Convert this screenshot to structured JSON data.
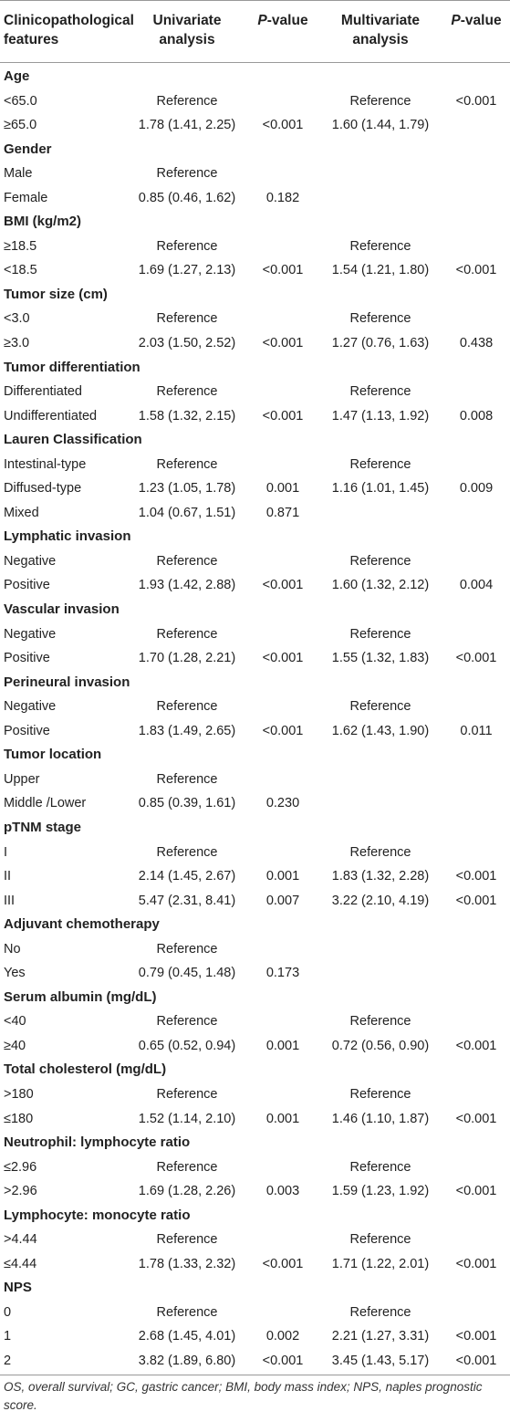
{
  "header": {
    "features_line1": "Clinicopathological",
    "features_line2": "features",
    "univariate_line1": "Univariate",
    "univariate_line2": "analysis",
    "p_value_1_italic": "P",
    "p_value_1_rest": "-value",
    "multivariate_line1": "Multivariate",
    "multivariate_line2": "analysis",
    "p_value_2_italic": "P",
    "p_value_2_rest": "-value"
  },
  "rows": [
    {
      "type": "group",
      "feature": "Age",
      "uni": "",
      "p1": "",
      "multi": "",
      "p2": ""
    },
    {
      "type": "data",
      "feature": "<65.0",
      "uni": "Reference",
      "p1": "",
      "multi": "Reference",
      "p2": "<0.001"
    },
    {
      "type": "data",
      "feature": "≥65.0",
      "uni": "1.78 (1.41, 2.25)",
      "p1": "<0.001",
      "multi": "1.60 (1.44, 1.79)",
      "p2": ""
    },
    {
      "type": "group",
      "feature": "Gender",
      "uni": "",
      "p1": "",
      "multi": "",
      "p2": ""
    },
    {
      "type": "data",
      "feature": "Male",
      "uni": "Reference",
      "p1": "",
      "multi": "",
      "p2": ""
    },
    {
      "type": "data",
      "feature": "Female",
      "uni": "0.85 (0.46, 1.62)",
      "p1": "0.182",
      "multi": "",
      "p2": ""
    },
    {
      "type": "group",
      "feature": "BMI (kg/m2)",
      "uni": "",
      "p1": "",
      "multi": "",
      "p2": ""
    },
    {
      "type": "data",
      "feature": "≥18.5",
      "uni": "Reference",
      "p1": "",
      "multi": "Reference",
      "p2": ""
    },
    {
      "type": "data",
      "feature": "<18.5",
      "uni": "1.69 (1.27, 2.13)",
      "p1": "<0.001",
      "multi": "1.54 (1.21, 1.80)",
      "p2": "<0.001"
    },
    {
      "type": "group",
      "feature": "Tumor size (cm)",
      "uni": "",
      "p1": "",
      "multi": "",
      "p2": ""
    },
    {
      "type": "data",
      "feature": "<3.0",
      "uni": "Reference",
      "p1": "",
      "multi": "Reference",
      "p2": ""
    },
    {
      "type": "data",
      "feature": "≥3.0",
      "uni": "2.03 (1.50, 2.52)",
      "p1": "<0.001",
      "multi": "1.27 (0.76, 1.63)",
      "p2": "0.438"
    },
    {
      "type": "group",
      "feature": "Tumor differentiation",
      "uni": "",
      "p1": "",
      "multi": "",
      "p2": ""
    },
    {
      "type": "data",
      "feature": "Differentiated",
      "uni": "Reference",
      "p1": "",
      "multi": "Reference",
      "p2": ""
    },
    {
      "type": "data",
      "feature": "Undifferentiated",
      "uni": "1.58 (1.32, 2.15)",
      "p1": "<0.001",
      "multi": "1.47 (1.13, 1.92)",
      "p2": "0.008"
    },
    {
      "type": "group",
      "feature": "Lauren Classification",
      "uni": "",
      "p1": "",
      "multi": "",
      "p2": ""
    },
    {
      "type": "data",
      "feature": "Intestinal-type",
      "uni": "Reference",
      "p1": "",
      "multi": "Reference",
      "p2": ""
    },
    {
      "type": "data",
      "feature": "Diffused-type",
      "uni": "1.23 (1.05, 1.78)",
      "p1": "0.001",
      "multi": "1.16 (1.01, 1.45)",
      "p2": "0.009"
    },
    {
      "type": "data",
      "feature": "Mixed",
      "uni": "1.04 (0.67, 1.51)",
      "p1": "0.871",
      "multi": "",
      "p2": ""
    },
    {
      "type": "group",
      "feature": "Lymphatic invasion",
      "uni": "",
      "p1": "",
      "multi": "",
      "p2": ""
    },
    {
      "type": "data",
      "feature": "Negative",
      "uni": "Reference",
      "p1": "",
      "multi": "Reference",
      "p2": ""
    },
    {
      "type": "data",
      "feature": "Positive",
      "uni": "1.93 (1.42, 2.88)",
      "p1": "<0.001",
      "multi": "1.60 (1.32, 2.12)",
      "p2": "0.004"
    },
    {
      "type": "group",
      "feature": "Vascular invasion",
      "uni": "",
      "p1": "",
      "multi": "",
      "p2": ""
    },
    {
      "type": "data",
      "feature": "Negative",
      "uni": "Reference",
      "p1": "",
      "multi": "Reference",
      "p2": ""
    },
    {
      "type": "data",
      "feature": "Positive",
      "uni": "1.70 (1.28, 2.21)",
      "p1": "<0.001",
      "multi": "1.55 (1.32, 1.83)",
      "p2": "<0.001"
    },
    {
      "type": "group",
      "feature": "Perineural invasion",
      "uni": "",
      "p1": "",
      "multi": "",
      "p2": ""
    },
    {
      "type": "data",
      "feature": "Negative",
      "uni": "Reference",
      "p1": "",
      "multi": "Reference",
      "p2": ""
    },
    {
      "type": "data",
      "feature": "Positive",
      "uni": "1.83 (1.49, 2.65)",
      "p1": "<0.001",
      "multi": "1.62 (1.43, 1.90)",
      "p2": "0.011"
    },
    {
      "type": "group",
      "feature": "Tumor location",
      "uni": "",
      "p1": "",
      "multi": "",
      "p2": ""
    },
    {
      "type": "data",
      "feature": "Upper",
      "uni": "Reference",
      "p1": "",
      "multi": "",
      "p2": ""
    },
    {
      "type": "data",
      "feature": "Middle /Lower",
      "uni": "0.85 (0.39, 1.61)",
      "p1": "0.230",
      "multi": "",
      "p2": ""
    },
    {
      "type": "group",
      "feature": "pTNM stage",
      "uni": "",
      "p1": "",
      "multi": "",
      "p2": ""
    },
    {
      "type": "data",
      "feature": "I",
      "uni": "Reference",
      "p1": "",
      "multi": "Reference",
      "p2": ""
    },
    {
      "type": "data",
      "feature": "II",
      "uni": "2.14 (1.45, 2.67)",
      "p1": "0.001",
      "multi": "1.83 (1.32, 2.28)",
      "p2": "<0.001"
    },
    {
      "type": "data",
      "feature": "III",
      "uni": "5.47 (2.31, 8.41)",
      "p1": "0.007",
      "multi": "3.22 (2.10, 4.19)",
      "p2": "<0.001"
    },
    {
      "type": "group",
      "feature": "Adjuvant chemotherapy",
      "uni": "",
      "p1": "",
      "multi": "",
      "p2": ""
    },
    {
      "type": "data",
      "feature": "No",
      "uni": "Reference",
      "p1": "",
      "multi": "",
      "p2": ""
    },
    {
      "type": "data",
      "feature": "Yes",
      "uni": "0.79 (0.45, 1.48)",
      "p1": "0.173",
      "multi": "",
      "p2": ""
    },
    {
      "type": "group",
      "feature": "Serum albumin (mg/dL)",
      "uni": "",
      "p1": "",
      "multi": "",
      "p2": ""
    },
    {
      "type": "data",
      "feature": "<40",
      "uni": "Reference",
      "p1": "",
      "multi": "Reference",
      "p2": ""
    },
    {
      "type": "data",
      "feature": "≥40",
      "uni": "0.65 (0.52, 0.94)",
      "p1": "0.001",
      "multi": "0.72 (0.56, 0.90)",
      "p2": "<0.001"
    },
    {
      "type": "group",
      "feature": "Total cholesterol (mg/dL)",
      "uni": "",
      "p1": "",
      "multi": "",
      "p2": ""
    },
    {
      "type": "data",
      "feature": ">180",
      "uni": "Reference",
      "p1": "",
      "multi": "Reference",
      "p2": ""
    },
    {
      "type": "data",
      "feature": "≤180",
      "uni": "1.52 (1.14, 2.10)",
      "p1": "0.001",
      "multi": "1.46 (1.10, 1.87)",
      "p2": "<0.001"
    },
    {
      "type": "group",
      "feature": "Neutrophil: lymphocyte ratio",
      "uni": "",
      "p1": "",
      "multi": "",
      "p2": ""
    },
    {
      "type": "data",
      "feature": "≤2.96",
      "uni": "Reference",
      "p1": "",
      "multi": "Reference",
      "p2": ""
    },
    {
      "type": "data",
      "feature": ">2.96",
      "uni": "1.69 (1.28, 2.26)",
      "p1": "0.003",
      "multi": "1.59 (1.23, 1.92)",
      "p2": "<0.001"
    },
    {
      "type": "group",
      "feature": "Lymphocyte: monocyte ratio",
      "uni": "",
      "p1": "",
      "multi": "",
      "p2": ""
    },
    {
      "type": "data",
      "feature": ">4.44",
      "uni": "Reference",
      "p1": "",
      "multi": "Reference",
      "p2": ""
    },
    {
      "type": "data",
      "feature": "≤4.44",
      "uni": "1.78 (1.33, 2.32)",
      "p1": "<0.001",
      "multi": "1.71 (1.22, 2.01)",
      "p2": "<0.001"
    },
    {
      "type": "group",
      "feature": "NPS",
      "uni": "",
      "p1": "",
      "multi": "",
      "p2": ""
    },
    {
      "type": "data",
      "feature": "0",
      "uni": "Reference",
      "p1": "",
      "multi": "Reference",
      "p2": ""
    },
    {
      "type": "data",
      "feature": "1",
      "uni": "2.68 (1.45, 4.01)",
      "p1": "0.002",
      "multi": "2.21 (1.27, 3.31)",
      "p2": "<0.001"
    },
    {
      "type": "data",
      "feature": "2",
      "uni": "3.82 (1.89, 6.80)",
      "p1": "<0.001",
      "multi": "3.45 (1.43, 5.17)",
      "p2": "<0.001"
    }
  ],
  "footnote": "OS, overall survival; GC, gastric cancer; BMI, body mass index; NPS, naples prognostic score.",
  "colors": {
    "rule": "#999999",
    "text": "#222222"
  }
}
